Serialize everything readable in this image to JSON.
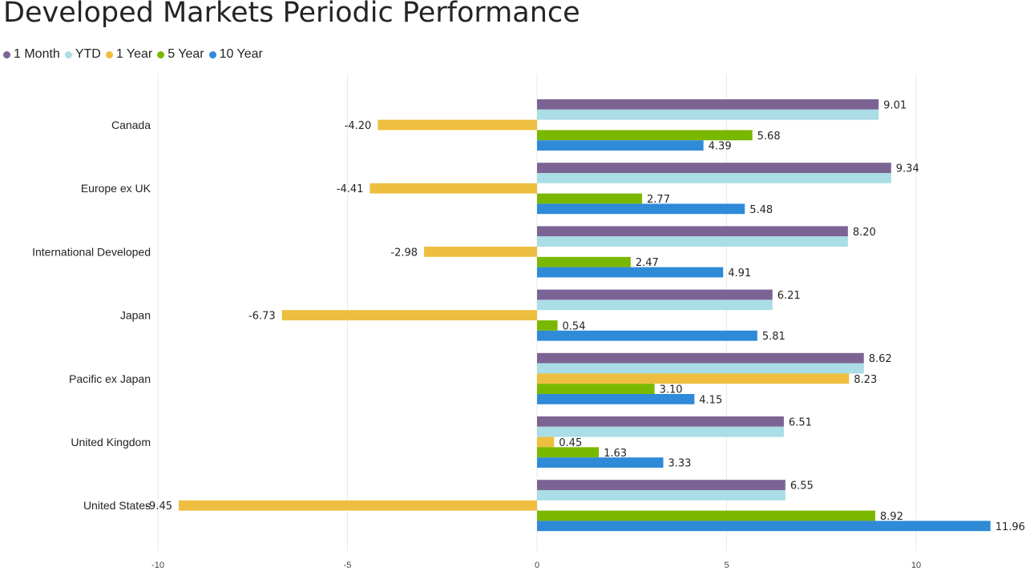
{
  "title": "Developed Markets Periodic Performance",
  "colors": {
    "background": "#ffffff",
    "grid": "#e9e9e9",
    "text": "#252423"
  },
  "chart_data": {
    "type": "bar",
    "orientation": "horizontal",
    "title": "Developed Markets Periodic Performance",
    "xlabel": "",
    "ylabel": "",
    "xlim": [
      -10,
      12.5
    ],
    "x_ticks": [
      -10,
      -5,
      0,
      5,
      10
    ],
    "x_tick_labels": [
      "-10",
      "-5",
      "0",
      "5",
      "10"
    ],
    "grid": "vertical",
    "legend_position": "top-left",
    "categories": [
      "Canada",
      "Europe ex UK",
      "International Developed",
      "Japan",
      "Pacific ex Japan",
      "United Kingdom",
      "United States"
    ],
    "series": [
      {
        "name": "1 Month",
        "color": "#7b6494",
        "values": [
          9.01,
          9.34,
          8.2,
          6.21,
          8.62,
          6.51,
          6.55
        ],
        "labels": [
          "9.01",
          "9.34",
          "8.20",
          "6.21",
          "8.62",
          "6.51",
          "6.55"
        ]
      },
      {
        "name": "YTD",
        "color": "#aadde5",
        "values": [
          9.01,
          9.34,
          8.2,
          6.21,
          8.62,
          6.51,
          6.55
        ],
        "labels": [
          "",
          "",
          "",
          "",
          "",
          "",
          ""
        ]
      },
      {
        "name": "1 Year",
        "color": "#eebe40",
        "values": [
          -4.2,
          -4.41,
          -2.98,
          -6.73,
          8.23,
          0.45,
          -9.45
        ],
        "labels": [
          "-4.20",
          "-4.41",
          "-2.98",
          "-6.73",
          "8.23",
          "0.45",
          "-9.45"
        ]
      },
      {
        "name": "5 Year",
        "color": "#7ab800",
        "values": [
          5.68,
          2.77,
          2.47,
          0.54,
          3.1,
          1.63,
          8.92
        ],
        "labels": [
          "5.68",
          "2.77",
          "2.47",
          "0.54",
          "3.10",
          "1.63",
          "8.92"
        ]
      },
      {
        "name": "10 Year",
        "color": "#2f8ad8",
        "values": [
          4.39,
          5.48,
          4.91,
          5.81,
          4.15,
          3.33,
          11.96
        ],
        "labels": [
          "4.39",
          "5.48",
          "4.91",
          "5.81",
          "4.15",
          "3.33",
          "11.96"
        ]
      }
    ]
  }
}
